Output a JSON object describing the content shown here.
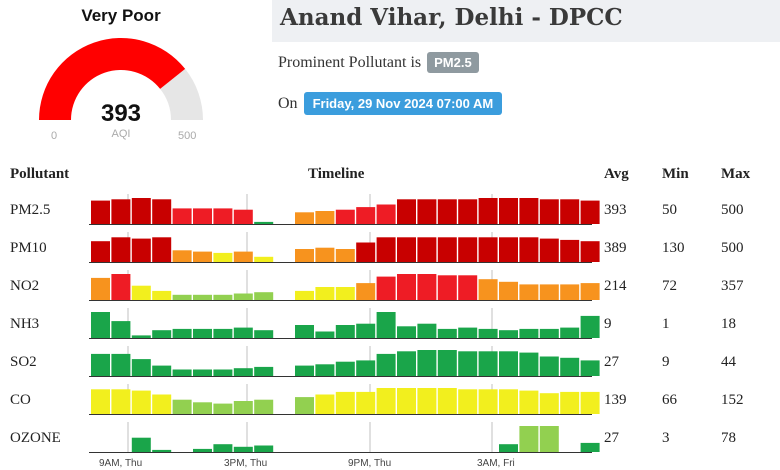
{
  "gauge": {
    "status": "Very Poor",
    "value": "393",
    "unit": "AQI",
    "min": "0",
    "max": "500",
    "value_num": 393,
    "max_num": 500,
    "fill_color": "#ff0000",
    "track_color": "#e6e6e6"
  },
  "header": {
    "title": "Anand Vihar, Delhi - DPCC",
    "prominent_text": "Prominent Pollutant is",
    "prominent_pollutant": "PM2.5",
    "on_text": "On",
    "datetime": "Friday, 29 Nov 2024 07:00 AM"
  },
  "table": {
    "headers": {
      "pollutant": "Pollutant",
      "timeline": "Timeline",
      "avg": "Avg",
      "min": "Min",
      "max": "Max"
    },
    "time_labels": [
      "9AM, Thu",
      "3PM, Thu",
      "9PM, Thu",
      "3AM, Fri"
    ],
    "rows": [
      {
        "name": "PM2.5",
        "avg": "393",
        "min": "50",
        "max": "500",
        "bars": [
          0.9,
          0.95,
          1.0,
          0.95,
          0.6,
          0.6,
          0.6,
          0.55,
          0.08,
          0,
          0.45,
          0.5,
          0.55,
          0.65,
          0.75,
          0.95,
          0.95,
          0.95,
          0.95,
          1.0,
          1.0,
          1.0,
          0.95,
          0.95,
          0.9
        ],
        "colors": [
          "r",
          "r",
          "r",
          "r",
          "R",
          "R",
          "R",
          "R",
          "g",
          "",
          "o",
          "o",
          "R",
          "R",
          "R",
          "r",
          "r",
          "r",
          "r",
          "r",
          "r",
          "r",
          "r",
          "r",
          "r"
        ]
      },
      {
        "name": "PM10",
        "avg": "389",
        "min": "130",
        "max": "500",
        "bars": [
          0.8,
          0.95,
          0.9,
          0.95,
          0.45,
          0.4,
          0.35,
          0.4,
          0.2,
          0,
          0.5,
          0.55,
          0.5,
          0.75,
          0.95,
          0.95,
          0.95,
          0.95,
          0.95,
          0.95,
          0.95,
          0.95,
          0.9,
          0.85,
          0.8
        ],
        "colors": [
          "r",
          "r",
          "r",
          "r",
          "o",
          "o",
          "y",
          "o",
          "y",
          "",
          "o",
          "o",
          "o",
          "r",
          "r",
          "r",
          "r",
          "r",
          "r",
          "r",
          "r",
          "r",
          "r",
          "r",
          "r"
        ]
      },
      {
        "name": "NO2",
        "avg": "214",
        "min": "72",
        "max": "357",
        "bars": [
          0.85,
          1.0,
          0.55,
          0.35,
          0.2,
          0.2,
          0.2,
          0.25,
          0.3,
          0,
          0.35,
          0.5,
          0.5,
          0.65,
          0.9,
          1.0,
          1.0,
          0.95,
          0.95,
          0.8,
          0.7,
          0.6,
          0.6,
          0.6,
          0.65
        ],
        "colors": [
          "o",
          "R",
          "y",
          "y",
          "G",
          "G",
          "G",
          "G",
          "G",
          "",
          "y",
          "y",
          "y",
          "o",
          "R",
          "R",
          "R",
          "R",
          "R",
          "o",
          "o",
          "o",
          "o",
          "o",
          "o"
        ]
      },
      {
        "name": "NH3",
        "avg": "9",
        "min": "1",
        "max": "18",
        "bars": [
          1.0,
          0.65,
          0.1,
          0.3,
          0.35,
          0.35,
          0.35,
          0.4,
          0.3,
          0,
          0.5,
          0.25,
          0.5,
          0.55,
          1.0,
          0.45,
          0.55,
          0.35,
          0.4,
          0.35,
          0.3,
          0.35,
          0.35,
          0.4,
          0.85
        ],
        "colors": [
          "g",
          "g",
          "g",
          "g",
          "g",
          "g",
          "g",
          "g",
          "g",
          "",
          "g",
          "g",
          "g",
          "g",
          "g",
          "g",
          "g",
          "g",
          "g",
          "g",
          "g",
          "g",
          "g",
          "g",
          "g"
        ]
      },
      {
        "name": "SO2",
        "avg": "27",
        "min": "9",
        "max": "44",
        "bars": [
          0.85,
          0.85,
          0.65,
          0.4,
          0.25,
          0.25,
          0.25,
          0.3,
          0.35,
          0,
          0.4,
          0.45,
          0.55,
          0.6,
          0.85,
          0.95,
          1.0,
          1.0,
          0.95,
          0.95,
          0.95,
          0.9,
          0.75,
          0.7,
          0.6
        ],
        "colors": [
          "g",
          "g",
          "g",
          "g",
          "g",
          "g",
          "g",
          "g",
          "g",
          "",
          "g",
          "g",
          "g",
          "g",
          "g",
          "g",
          "g",
          "g",
          "g",
          "g",
          "g",
          "g",
          "g",
          "g",
          "g"
        ]
      },
      {
        "name": "CO",
        "avg": "139",
        "min": "66",
        "max": "152",
        "bars": [
          0.95,
          0.95,
          0.9,
          0.75,
          0.55,
          0.45,
          0.4,
          0.5,
          0.55,
          0,
          0.65,
          0.75,
          0.85,
          0.85,
          1.0,
          1.0,
          1.0,
          1.0,
          0.95,
          0.95,
          0.95,
          0.9,
          0.8,
          0.85,
          0.85
        ],
        "colors": [
          "y",
          "y",
          "y",
          "y",
          "G",
          "G",
          "G",
          "G",
          "G",
          "",
          "G",
          "y",
          "y",
          "y",
          "y",
          "y",
          "y",
          "y",
          "y",
          "y",
          "y",
          "y",
          "y",
          "y",
          "y"
        ]
      },
      {
        "name": "OZONE",
        "avg": "27",
        "min": "3",
        "max": "78",
        "bars": [
          0,
          0,
          0.55,
          0.08,
          0,
          0.12,
          0.3,
          0.2,
          0.25,
          0,
          0,
          0,
          0,
          0,
          0,
          0,
          0,
          0,
          0,
          0,
          0.3,
          1.0,
          1.0,
          0,
          0.35
        ],
        "colors": [
          "",
          "",
          "g",
          "g",
          "",
          "g",
          "g",
          "g",
          "g",
          "",
          "",
          "",
          "",
          "",
          "",
          "",
          "",
          "",
          "",
          "",
          "g",
          "G",
          "G",
          "",
          "g"
        ]
      }
    ]
  },
  "colors": {
    "r": "#c80000",
    "R": "#ee1c25",
    "o": "#f7931e",
    "y": "#f2ef1e",
    "G": "#92d050",
    "g": "#1aa54a",
    "axis": "#333333",
    "tick": "#c0c0c0"
  }
}
